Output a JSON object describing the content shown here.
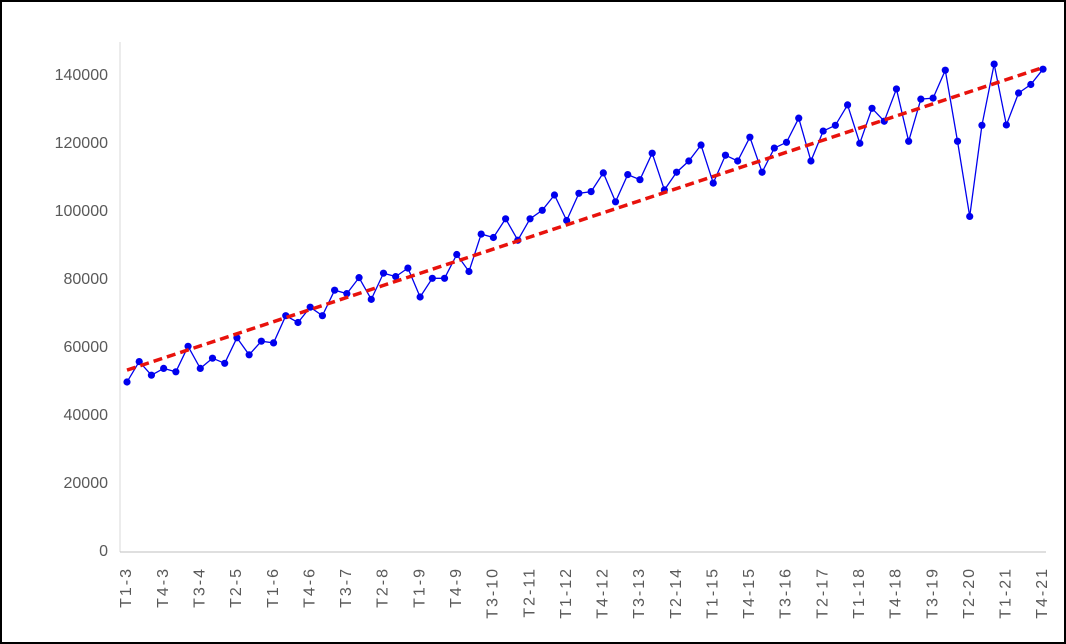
{
  "chart_data": {
    "type": "line",
    "categories": [
      "T1-3",
      null,
      null,
      "T4-3",
      null,
      null,
      "T3-4",
      null,
      null,
      "T2-5",
      null,
      null,
      "T1-6",
      null,
      null,
      "T4-6",
      null,
      null,
      "T3-7",
      null,
      null,
      "T2-8",
      null,
      null,
      "T1-9",
      null,
      null,
      "T4-9",
      null,
      null,
      "T3-10",
      null,
      null,
      "T2-11",
      null,
      null,
      "T1-12",
      null,
      null,
      "T4-12",
      null,
      null,
      "T3-13",
      null,
      null,
      "T2-14",
      null,
      null,
      "T1-15",
      null,
      null,
      "T4-15",
      null,
      null,
      "T3-16",
      null,
      null,
      "T2-17",
      null,
      null,
      "T1-18",
      null,
      null,
      "T4-18",
      null,
      null,
      "T3-19",
      null,
      null,
      "T2-20",
      null,
      null,
      "T1-21",
      null,
      null,
      "T4-21"
    ],
    "series": [
      {
        "color": "#0000ee",
        "values": [
          50000,
          56000,
          52000,
          54000,
          53000,
          60500,
          54000,
          57000,
          55500,
          63000,
          58000,
          62000,
          61500,
          69500,
          67500,
          72000,
          69500,
          77000,
          76000,
          80700,
          74300,
          82000,
          81000,
          83500,
          75000,
          80500,
          80500,
          87500,
          82500,
          93500,
          92500,
          98000,
          91700,
          98000,
          100500,
          105000,
          97500,
          105500,
          106000,
          111500,
          103000,
          111000,
          109500,
          117300,
          106500,
          111700,
          115000,
          119700,
          108500,
          116700,
          115000,
          122000,
          111700,
          118800,
          120500,
          127600,
          115000,
          123800,
          125500,
          131500,
          120200,
          130500,
          126700,
          136200,
          120800,
          133200,
          133500,
          141700,
          120800,
          98700,
          125500,
          143500,
          125600,
          135000,
          137500,
          142000
        ]
      }
    ],
    "trendline": {
      "color": "#e8120c",
      "values": [
        53500,
        142500
      ]
    },
    "ylim": [
      0,
      150000
    ],
    "yticks": [
      0,
      20000,
      40000,
      60000,
      80000,
      100000,
      120000,
      140000
    ],
    "grid": false
  }
}
